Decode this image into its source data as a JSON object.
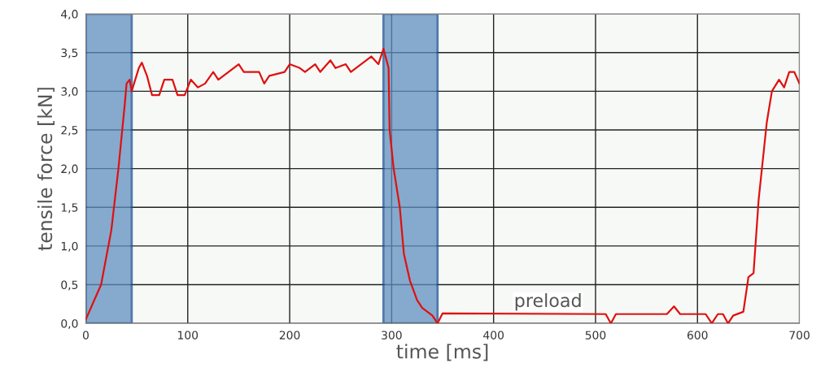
{
  "chart_data": {
    "type": "line",
    "xlabel": "time [ms]",
    "ylabel": "tensile force [kN]",
    "xlim": [
      0,
      700
    ],
    "ylim": [
      0,
      4
    ],
    "xticks": [
      0,
      100,
      200,
      300,
      400,
      500,
      600,
      700
    ],
    "yticks": [
      {
        "value": 0,
        "label": "0,0"
      },
      {
        "value": 0.5,
        "label": "0,5"
      },
      {
        "value": 1,
        "label": "1,0"
      },
      {
        "value": 1.5,
        "label": "1,5"
      },
      {
        "value": 2,
        "label": "2,0"
      },
      {
        "value": 2.5,
        "label": "2,5"
      },
      {
        "value": 3,
        "label": "3,0"
      },
      {
        "value": 3.5,
        "label": "3,5"
      },
      {
        "value": 4,
        "label": "4,0"
      }
    ],
    "grid": true,
    "legend": false,
    "marker": "none",
    "line_style": "solid",
    "series": [
      {
        "color": "#e01010",
        "x": [
          0,
          15,
          25,
          32,
          38,
          40,
          43,
          45,
          52,
          55,
          60,
          65,
          72,
          77,
          85,
          90,
          97,
          103,
          110,
          117,
          125,
          130,
          140,
          150,
          155,
          170,
          175,
          180,
          195,
          200,
          210,
          215,
          220,
          225,
          230,
          240,
          245,
          255,
          260,
          270,
          280,
          287,
          292,
          297,
          298,
          302,
          308,
          312,
          318,
          325,
          330,
          335,
          340,
          345,
          350,
          510,
          515,
          520,
          570,
          577,
          583,
          608,
          614,
          620,
          625,
          630,
          635,
          645,
          650,
          655,
          660,
          668,
          673,
          680,
          685,
          690,
          695,
          700
        ],
        "values": [
          0.05,
          0.5,
          1.2,
          2.0,
          2.8,
          3.1,
          3.15,
          3.0,
          3.3,
          3.37,
          3.2,
          2.95,
          2.95,
          3.15,
          3.15,
          2.95,
          2.95,
          3.15,
          3.05,
          3.1,
          3.25,
          3.15,
          3.25,
          3.35,
          3.25,
          3.25,
          3.1,
          3.2,
          3.25,
          3.35,
          3.3,
          3.25,
          3.3,
          3.35,
          3.25,
          3.4,
          3.3,
          3.35,
          3.25,
          3.35,
          3.45,
          3.35,
          3.55,
          3.3,
          2.5,
          2.0,
          1.5,
          0.9,
          0.55,
          0.3,
          0.2,
          0.15,
          0.1,
          0.0,
          0.13,
          0.12,
          0.0,
          0.12,
          0.12,
          0.22,
          0.12,
          0.12,
          0.0,
          0.12,
          0.12,
          0.0,
          0.1,
          0.15,
          0.6,
          0.65,
          1.6,
          2.6,
          3.0,
          3.15,
          3.05,
          3.25,
          3.25,
          3.1
        ]
      }
    ],
    "bands": [
      {
        "axis": "x",
        "from": 0,
        "to": 45,
        "color": "#5f8fbf"
      },
      {
        "axis": "x",
        "from": 292,
        "to": 345,
        "color": "#5f8fbf"
      }
    ],
    "annotations": [
      {
        "text": "preload",
        "x": 420,
        "y": 0.12
      }
    ]
  }
}
